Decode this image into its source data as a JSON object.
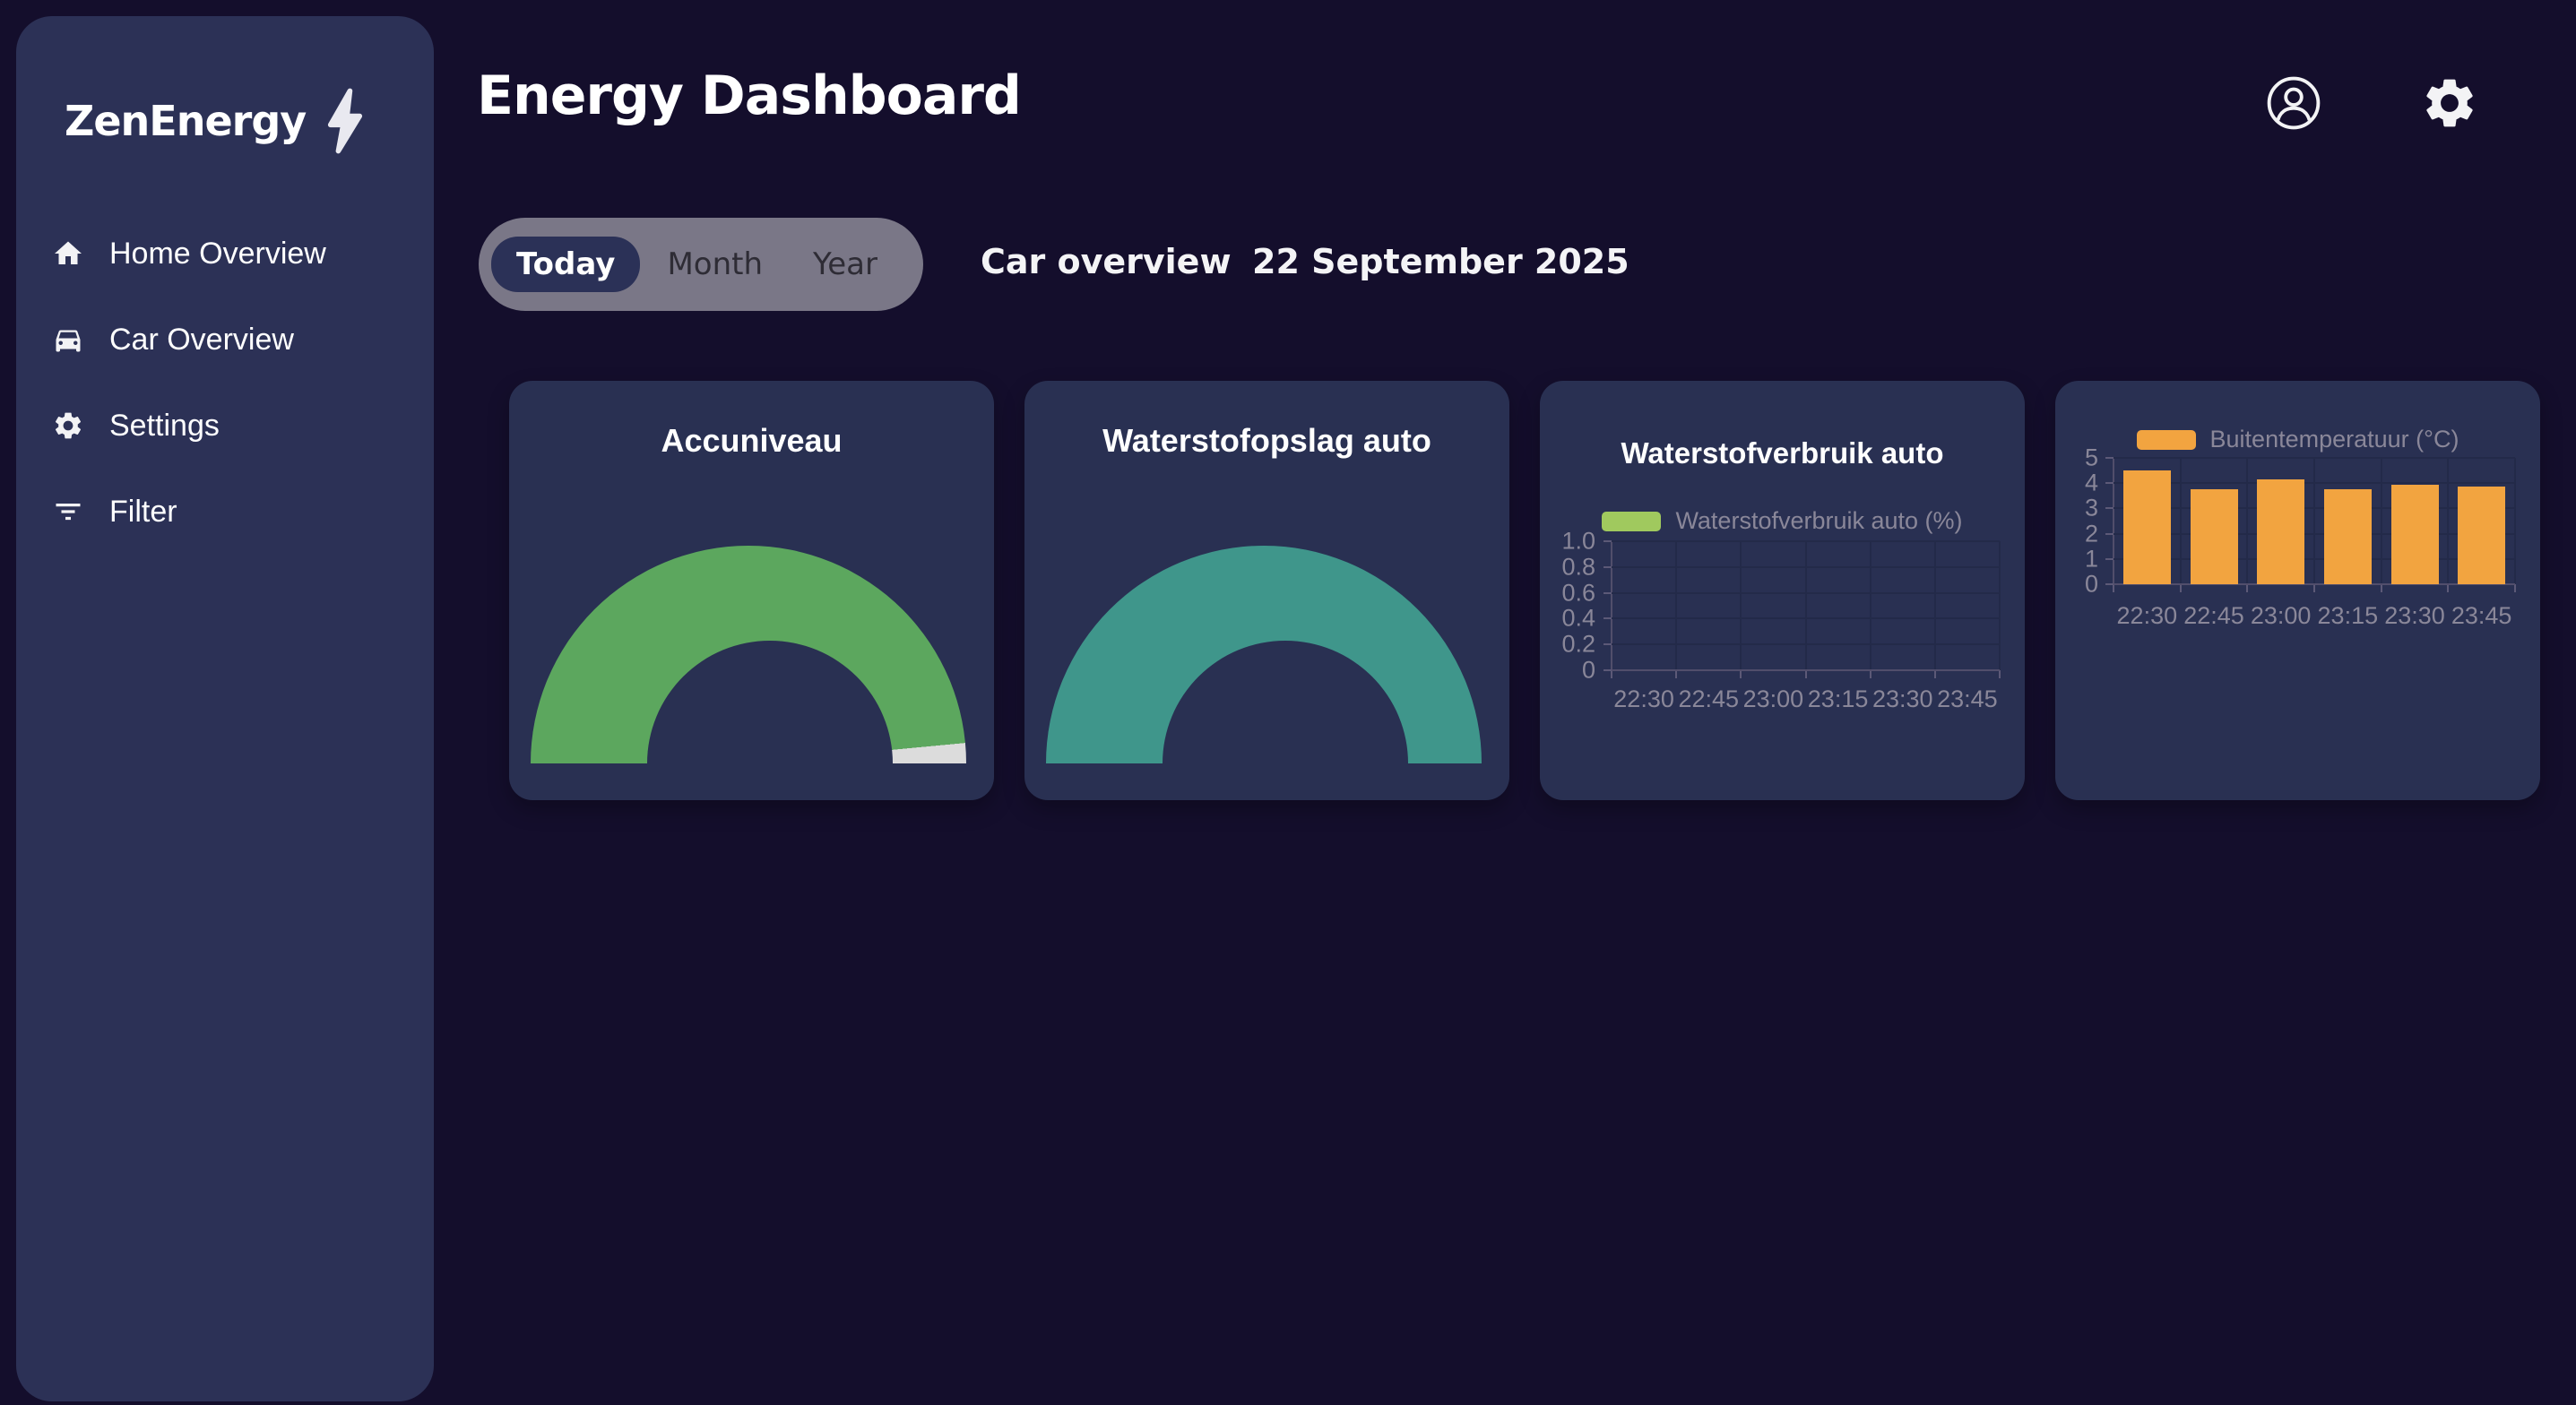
{
  "app": {
    "name": "ZenEnergy"
  },
  "sidebar": {
    "logo_text": "ZenEnergy",
    "logo_icon": "lightning-bolt-icon",
    "items": [
      {
        "label": "Home Overview",
        "icon": "home-icon"
      },
      {
        "label": "Car Overview",
        "icon": "car-icon"
      },
      {
        "label": "Settings",
        "icon": "gear-icon"
      },
      {
        "label": "Filter",
        "icon": "filter-icon"
      }
    ]
  },
  "header": {
    "title": "Energy Dashboard",
    "icons": [
      "profile-icon",
      "settings-gear-icon"
    ]
  },
  "controls": {
    "toggle": {
      "options": [
        "Today",
        "Month",
        "Year"
      ],
      "active": "Today"
    },
    "section_label": "Car overview",
    "date": "22 September 2025"
  },
  "chart_data": [
    {
      "type": "gauge",
      "title": "Accuniveau",
      "value": 0.97,
      "max": 1,
      "color": "#5ca75e",
      "track_color": "#dcdcdc"
    },
    {
      "type": "gauge",
      "title": "Waterstofopslag auto",
      "value": 1.0,
      "max": 1,
      "color": "#3f968b",
      "track_color": "#dcdcdc"
    },
    {
      "type": "line",
      "title": "Waterstofverbruik auto",
      "legend": "Waterstofverbruik auto (%)",
      "legend_color": "#a0c95e",
      "x": [
        "22:30",
        "22:45",
        "23:00",
        "23:15",
        "23:30",
        "23:45"
      ],
      "series": [
        {
          "name": "Waterstofverbruik auto (%)",
          "values": []
        }
      ],
      "ylim": [
        0,
        1.0
      ],
      "yticks": [
        "1.0",
        "0.8",
        "0.6",
        "0.4",
        "0.2",
        "0"
      ],
      "grid": true,
      "legend_position": "top"
    },
    {
      "type": "bar",
      "title": "",
      "legend": "Buitentemperatuur (°C)",
      "legend_color": "#f2a440",
      "color": "#f2a440",
      "categories": [
        "22:30",
        "22:45",
        "23:00",
        "23:15",
        "23:30",
        "23:45"
      ],
      "values": [
        4.5,
        3.75,
        4.15,
        3.75,
        3.95,
        3.85
      ],
      "ylim": [
        0,
        5
      ],
      "yticks": [
        "5",
        "4",
        "3",
        "2",
        "1",
        "0"
      ],
      "grid": true,
      "legend_position": "top"
    }
  ],
  "colors": {
    "page_bg": "#140e2c",
    "sidebar_bg": "#2c3156",
    "card_bg": "#293052",
    "pill_bg": "#7a7787",
    "active_chip_bg": "#2b3157",
    "accent_green": "#5ca75e",
    "accent_teal": "#3f968b",
    "legend_green": "#a0c95e",
    "accent_orange": "#f2a440",
    "axis_text": "#8a8799"
  }
}
